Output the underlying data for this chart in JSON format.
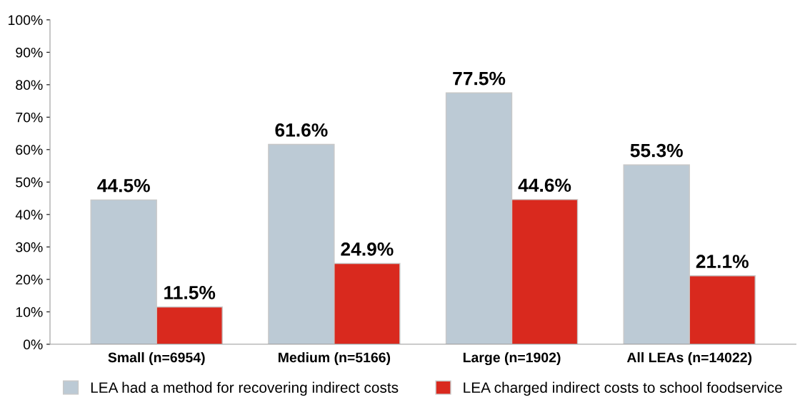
{
  "chart_data": {
    "type": "bar",
    "categories": [
      "Small (n=6954)",
      "Medium (n=5166)",
      "Large (n=1902)",
      "All LEAs (n=14022)"
    ],
    "series": [
      {
        "name": "LEA had a method for recovering indirect costs",
        "color": "#bccad5",
        "values": [
          44.5,
          61.6,
          77.5,
          55.3
        ],
        "value_labels": [
          "44.5%",
          "61.6%",
          "77.5%",
          "55.3%"
        ]
      },
      {
        "name": "LEA charged indirect costs to school foodservice",
        "color": "#d9291e",
        "values": [
          11.5,
          24.9,
          44.6,
          21.1
        ],
        "value_labels": [
          "11.5%",
          "24.9%",
          "44.6%",
          "21.1%"
        ]
      }
    ],
    "ylim": [
      0,
      100
    ],
    "yticks": [
      {
        "value": 0,
        "label": "0%"
      },
      {
        "value": 10,
        "label": "10%"
      },
      {
        "value": 20,
        "label": "20%"
      },
      {
        "value": 30,
        "label": "30%"
      },
      {
        "value": 40,
        "label": "40%"
      },
      {
        "value": 50,
        "label": "50%"
      },
      {
        "value": 60,
        "label": "60%"
      },
      {
        "value": 70,
        "label": "70%"
      },
      {
        "value": 80,
        "label": "80%"
      },
      {
        "value": 90,
        "label": "90%"
      },
      {
        "value": 100,
        "label": "100%"
      }
    ],
    "grid": false,
    "legend": "bottom"
  }
}
